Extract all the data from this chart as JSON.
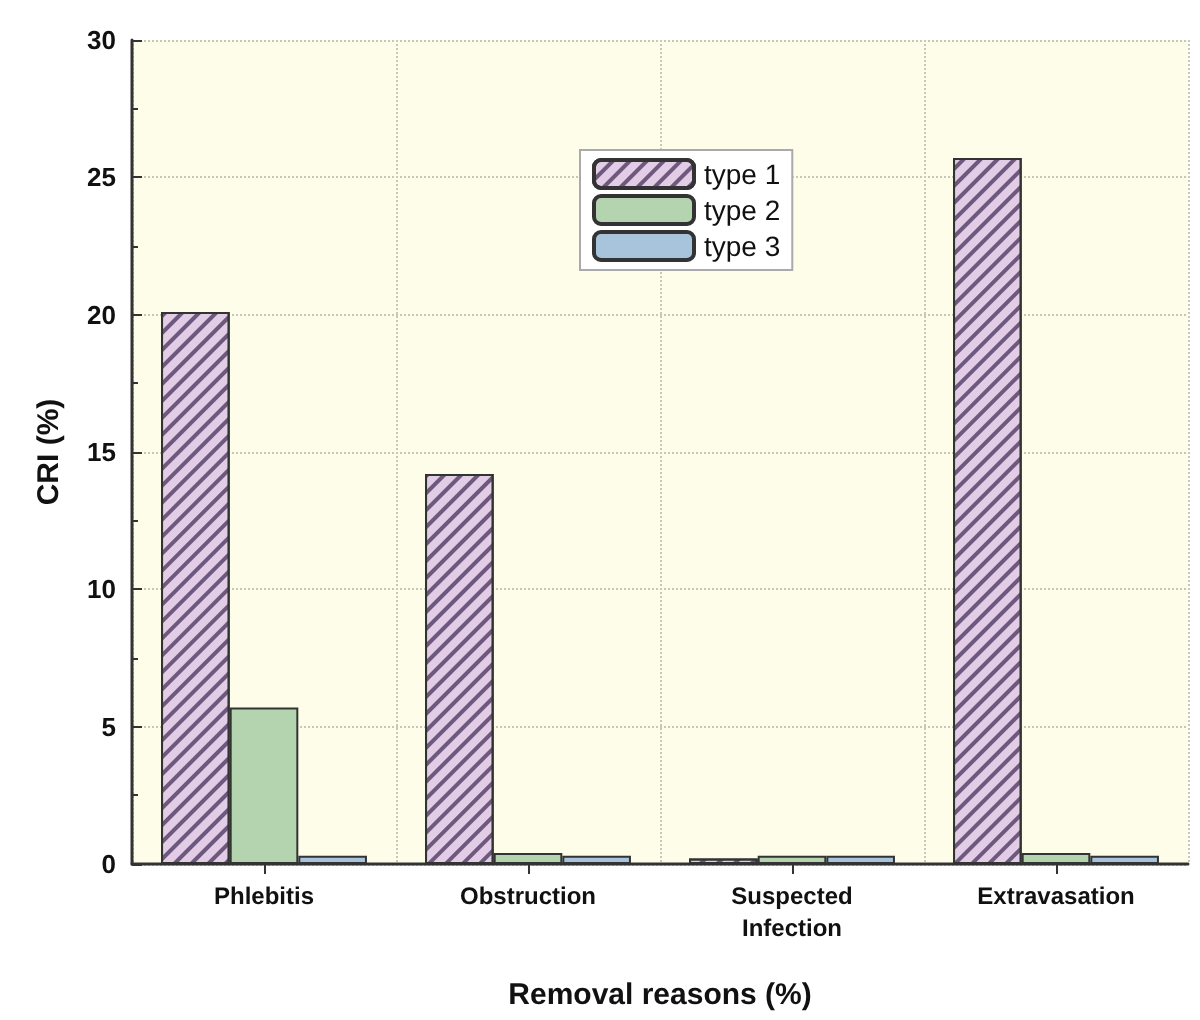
{
  "chart_data": {
    "type": "bar",
    "xlabel": "Removal reasons (%)",
    "ylabel": "CRI (%)",
    "categories": [
      "Phlebitis",
      "Obstruction",
      "Suspected\nInfection",
      "Extravasation"
    ],
    "series": [
      {
        "name": "type 1",
        "color": "#e3cde6",
        "values": [
          20.1,
          14.2,
          0.2,
          25.7
        ]
      },
      {
        "name": "type 2",
        "color": "#b3d4ae",
        "values": [
          5.7,
          0.4,
          0.3,
          0.4
        ]
      },
      {
        "name": "type 3",
        "color": "#a8c3dc",
        "values": [
          0.3,
          0.3,
          0.3,
          0.3
        ]
      }
    ],
    "ylim": [
      0,
      30
    ],
    "yticks": [
      0,
      5,
      10,
      15,
      20,
      25,
      30
    ],
    "grid": true,
    "legend": "top"
  }
}
